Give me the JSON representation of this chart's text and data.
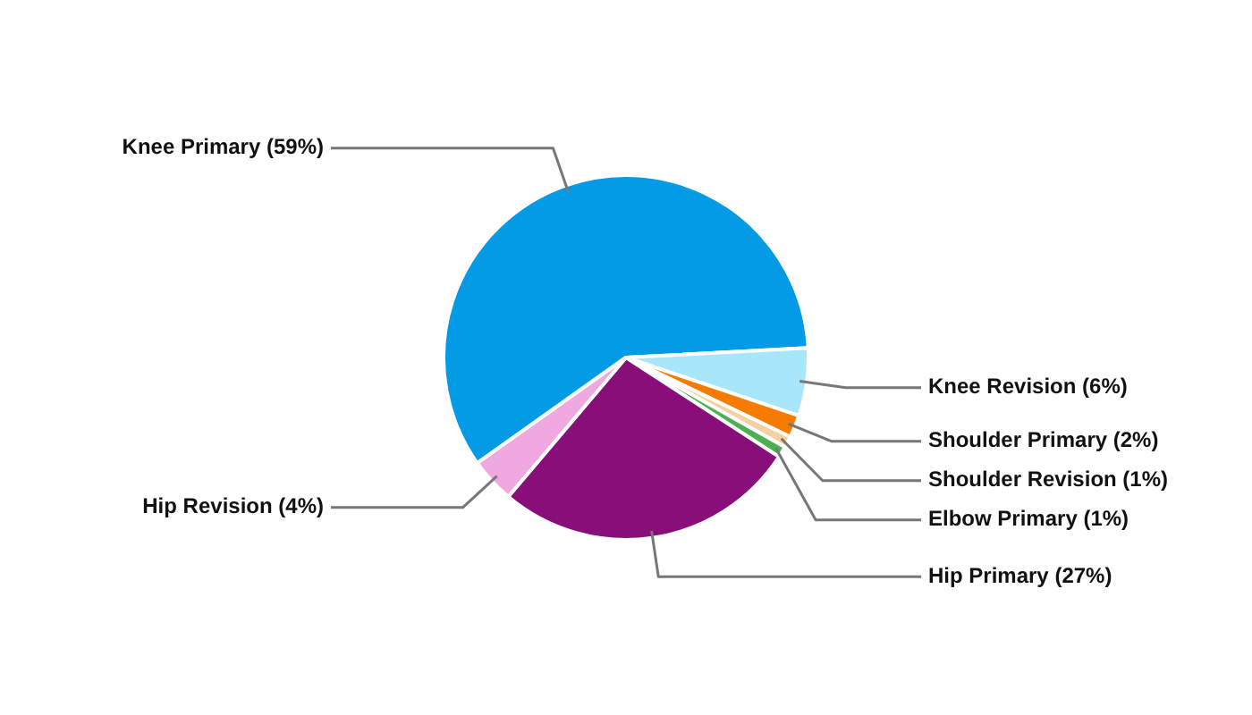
{
  "chart_data": {
    "type": "pie",
    "categories": [
      "Knee Primary (59%)",
      "Knee Revision (6%)",
      "Shoulder Primary (2%)",
      "Shoulder Revision (1%)",
      "Elbow Primary (1%)",
      "Hip Primary (27%)",
      "Hip Revision (4%)"
    ],
    "values": [
      59,
      6,
      2,
      1,
      1,
      27,
      4
    ],
    "colors": [
      "#039be5",
      "#a8e6fc",
      "#f57c00",
      "#f5d0a0",
      "#4caf50",
      "#880e7a",
      "#f0a8e0"
    ],
    "legend": false
  }
}
